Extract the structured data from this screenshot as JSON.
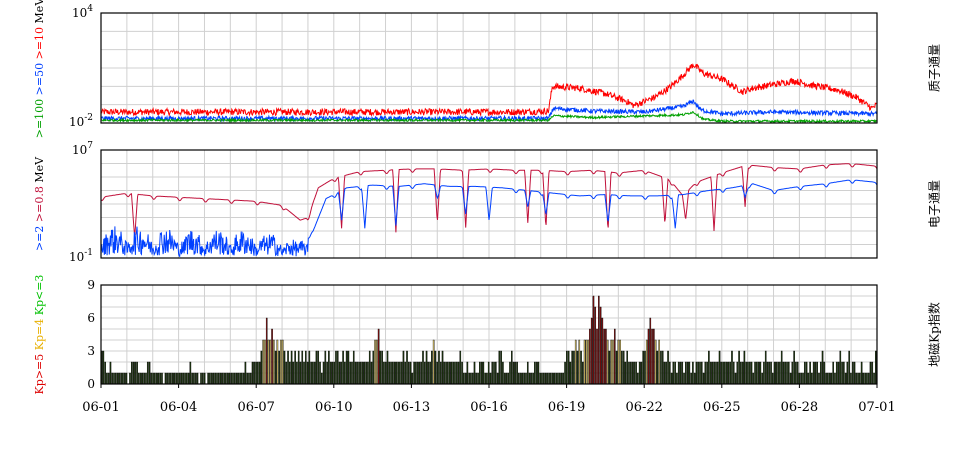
{
  "chart_data": [
    {
      "type": "line",
      "panel": "proton",
      "title": "质子通量",
      "ylabel_parts": [
        {
          "text": ">=100",
          "color": "#00a000"
        },
        {
          "text": ">=50",
          "color": "#0040ff"
        },
        {
          "text": ">=10",
          "color": "#ff0000"
        },
        {
          "text": "MeV",
          "color": "#000000"
        }
      ],
      "ytick_labels": [
        {
          "base": "10",
          "exp": "4"
        },
        {
          "base": "10",
          "exp": "-2"
        }
      ],
      "scale": "log",
      "ylim": [
        -2,
        4
      ],
      "grid": true,
      "series": [
        {
          "key": ">=10 MeV",
          "color": "#ff0000",
          "points": [
            [
              0,
              -1.4
            ],
            [
              16,
              -1.4
            ],
            [
              17.3,
              -1.35
            ],
            [
              17.45,
              0.0
            ],
            [
              18.5,
              -0.1
            ],
            [
              19.5,
              -0.4
            ],
            [
              20.3,
              -0.8
            ],
            [
              20.6,
              -1.05
            ],
            [
              21.4,
              -0.6
            ],
            [
              22,
              -0.05
            ],
            [
              22.5,
              0.6
            ],
            [
              22.9,
              1.2
            ],
            [
              23.3,
              0.7
            ],
            [
              24,
              0.4
            ],
            [
              24.8,
              -0.3
            ],
            [
              25.2,
              -0.1
            ],
            [
              26,
              0.1
            ],
            [
              26.8,
              0.3
            ],
            [
              27.5,
              0.05
            ],
            [
              28.5,
              -0.2
            ],
            [
              29.2,
              -0.6
            ],
            [
              29.8,
              -1.2
            ],
            [
              30,
              -1.0
            ]
          ],
          "noise": 0.18
        },
        {
          "key": ">=50 MeV",
          "color": "#0040ff",
          "points": [
            [
              0,
              -1.75
            ],
            [
              17.3,
              -1.75
            ],
            [
              17.5,
              -1.2
            ],
            [
              19,
              -1.35
            ],
            [
              21,
              -1.4
            ],
            [
              22.5,
              -1.1
            ],
            [
              22.9,
              -0.8
            ],
            [
              23.2,
              -1.3
            ],
            [
              24,
              -1.5
            ],
            [
              26,
              -1.4
            ],
            [
              28,
              -1.45
            ],
            [
              30,
              -1.5
            ]
          ],
          "noise": 0.12
        },
        {
          "key": ">=100 MeV",
          "color": "#00a000",
          "points": [
            [
              0,
              -1.85
            ],
            [
              17.3,
              -1.85
            ],
            [
              17.5,
              -1.6
            ],
            [
              19,
              -1.7
            ],
            [
              22.5,
              -1.55
            ],
            [
              22.9,
              -1.4
            ],
            [
              23.3,
              -1.8
            ],
            [
              24,
              -1.9
            ],
            [
              30,
              -1.9
            ]
          ],
          "noise": 0.06
        }
      ]
    },
    {
      "type": "line",
      "panel": "electron",
      "title": "电子通量",
      "ylabel_parts": [
        {
          "text": ">=2",
          "color": "#0040ff"
        },
        {
          "text": ">=0.8",
          "color": "#c0103a"
        },
        {
          "text": "MeV",
          "color": "#000000"
        }
      ],
      "ytick_labels": [
        {
          "base": "10",
          "exp": "7"
        },
        {
          "base": "10",
          "exp": "-1"
        }
      ],
      "scale": "log",
      "ylim": [
        -1,
        7
      ],
      "grid": true,
      "series": [
        {
          "key": ">=0.8 MeV",
          "color": "#c0103a",
          "points": [
            [
              0,
              3.5
            ],
            [
              1,
              3.8
            ],
            [
              2,
              3.6
            ],
            [
              3,
              3.5
            ],
            [
              4,
              3.4
            ],
            [
              5,
              3.3
            ],
            [
              6,
              3.2
            ],
            [
              7,
              2.9
            ],
            [
              7.7,
              1.8
            ],
            [
              8.0,
              2.0
            ],
            [
              8.4,
              4.2
            ],
            [
              9,
              4.9
            ],
            [
              10,
              5.4
            ],
            [
              11,
              5.5
            ],
            [
              12,
              5.6
            ],
            [
              13,
              5.6
            ],
            [
              14,
              5.5
            ],
            [
              15,
              5.6
            ],
            [
              16,
              5.5
            ],
            [
              17,
              5.5
            ],
            [
              18,
              5.4
            ],
            [
              19,
              5.5
            ],
            [
              20,
              5.3
            ],
            [
              21,
              5.5
            ],
            [
              22,
              4.8
            ],
            [
              22.5,
              3.6
            ],
            [
              23,
              4.6
            ],
            [
              24,
              5.3
            ],
            [
              25,
              5.9
            ],
            [
              26,
              5.7
            ],
            [
              27,
              5.6
            ],
            [
              28,
              5.9
            ],
            [
              29,
              6.0
            ],
            [
              30,
              5.8
            ]
          ],
          "dips": [
            [
              1.3,
              0.5
            ],
            [
              9.3,
              1.2
            ],
            [
              11.4,
              0.9
            ],
            [
              13.0,
              1.8
            ],
            [
              14.1,
              1.4
            ],
            [
              16.5,
              1.6
            ],
            [
              17.2,
              1.2
            ],
            [
              19.6,
              1.0
            ],
            [
              21.8,
              1.5
            ],
            [
              22.6,
              1.8
            ],
            [
              23.7,
              1.0
            ],
            [
              24.9,
              2.8
            ]
          ]
        },
        {
          "key": ">=2 MeV",
          "color": "#0040ff",
          "points": [
            [
              0,
              1.0
            ],
            [
              1,
              1.0
            ],
            [
              2,
              1.0
            ],
            [
              3,
              0.9
            ],
            [
              4,
              0.8
            ],
            [
              5,
              0.8
            ],
            [
              6,
              0.7
            ],
            [
              7,
              0.5
            ],
            [
              7.6,
              0.0
            ],
            [
              8.2,
              1.0
            ],
            [
              8.7,
              3.4
            ],
            [
              9.5,
              4.2
            ],
            [
              10.5,
              4.4
            ],
            [
              11.5,
              4.3
            ],
            [
              12.5,
              4.5
            ],
            [
              13.5,
              4.3
            ],
            [
              14.5,
              4.3
            ],
            [
              15.5,
              4.2
            ],
            [
              16.5,
              4.0
            ],
            [
              17.5,
              3.8
            ],
            [
              18.5,
              3.6
            ],
            [
              19.5,
              3.7
            ],
            [
              20.5,
              3.6
            ],
            [
              21.5,
              3.6
            ],
            [
              22.5,
              3.7
            ],
            [
              23.5,
              4.0
            ],
            [
              24.4,
              4.2
            ],
            [
              25.2,
              4.5
            ],
            [
              26,
              4.0
            ],
            [
              27,
              4.3
            ],
            [
              28,
              4.5
            ],
            [
              29,
              4.8
            ],
            [
              30,
              4.6
            ]
          ],
          "dips": [
            [
              3.2,
              0.3
            ],
            [
              6.4,
              0.3
            ],
            [
              9.3,
              1.8
            ],
            [
              10.2,
              1.2
            ],
            [
              11.4,
              1.4
            ],
            [
              13.0,
              3.6
            ],
            [
              14.1,
              2.4
            ],
            [
              15.0,
              2.0
            ],
            [
              16.5,
              2.8
            ],
            [
              17.2,
              2.2
            ],
            [
              19.6,
              1.6
            ],
            [
              22.2,
              1.2
            ],
            [
              24.9,
              3.5
            ]
          ],
          "noisy_range": [
            0,
            8
          ]
        }
      ]
    },
    {
      "type": "bar",
      "panel": "kp",
      "title": "地磁Kp指数",
      "ylabel_parts": [
        {
          "text": "Kp>=5",
          "color": "#dd0000"
        },
        {
          "text": "Kp=4",
          "color": "#e8b000"
        },
        {
          "text": "Kp<=3",
          "color": "#00c000"
        }
      ],
      "ylim": [
        0,
        9
      ],
      "yticks": [
        0,
        3,
        6,
        9
      ],
      "grid": true,
      "colors": {
        "quiet": "#1f3a10",
        "active": "#e8d070",
        "storm": "#8a1010"
      },
      "values": [
        3,
        3,
        2,
        1,
        1,
        2,
        1,
        1,
        1,
        1,
        1,
        1,
        1,
        1,
        1,
        0,
        1,
        2,
        2,
        2,
        2,
        1,
        1,
        1,
        1,
        1,
        2,
        2,
        1,
        1,
        1,
        1,
        1,
        1,
        1,
        0,
        1,
        1,
        1,
        1,
        1,
        1,
        1,
        1,
        1,
        1,
        1,
        1,
        1,
        1,
        2,
        1,
        1,
        1,
        1,
        0,
        1,
        1,
        1,
        0,
        1,
        1,
        1,
        1,
        1,
        1,
        1,
        1,
        1,
        1,
        1,
        1,
        1,
        1,
        1,
        1,
        1,
        1,
        1,
        1,
        1,
        2,
        1,
        1,
        1,
        2,
        2,
        2,
        2,
        2,
        3,
        4,
        4,
        6,
        4,
        4,
        5,
        4,
        3,
        4,
        3,
        4,
        4,
        3,
        2,
        3,
        2,
        3,
        2,
        3,
        2,
        3,
        2,
        3,
        2,
        3,
        2,
        3,
        2,
        2,
        2,
        3,
        3,
        2,
        1,
        2,
        3,
        2,
        3,
        2,
        2,
        2,
        3,
        3,
        2,
        2,
        3,
        2,
        3,
        3,
        2,
        2,
        3,
        2,
        2,
        2,
        2,
        2,
        2,
        2,
        2,
        3,
        2,
        3,
        4,
        4,
        5,
        3,
        3,
        2,
        2,
        3,
        2,
        2,
        2,
        2,
        2,
        2,
        2,
        2,
        3,
        2,
        3,
        2,
        2,
        1,
        2,
        2,
        2,
        2,
        2,
        3,
        2,
        3,
        2,
        2,
        3,
        4,
        3,
        2,
        3,
        2,
        3,
        2,
        2,
        2,
        2,
        2,
        2,
        2,
        2,
        2,
        3,
        2,
        1,
        1,
        2,
        1,
        1,
        1,
        2,
        1,
        1,
        2,
        2,
        2,
        1,
        1,
        2,
        1,
        2,
        2,
        2,
        1,
        3,
        3,
        2,
        1,
        1,
        1,
        2,
        3,
        2,
        2,
        2,
        1,
        1,
        1,
        1,
        1,
        2,
        1,
        1,
        1,
        2,
        2,
        2,
        1,
        1,
        1,
        1,
        1,
        1,
        1,
        1,
        1,
        1,
        1,
        1,
        1,
        1,
        2,
        3,
        3,
        2,
        3,
        3,
        4,
        3,
        4,
        3,
        2,
        4,
        4,
        4,
        5,
        6,
        8,
        7,
        5,
        8,
        7,
        6,
        5,
        5,
        4,
        3,
        4,
        4,
        5,
        3,
        4,
        4,
        3,
        3,
        2,
        3,
        2,
        2,
        2,
        2,
        2,
        1,
        2,
        2,
        3,
        3,
        4,
        5,
        6,
        5,
        5,
        4,
        3,
        4,
        3,
        3,
        2,
        2,
        3,
        2,
        1,
        2,
        2,
        1,
        2,
        2,
        2,
        1,
        2,
        2,
        2,
        1,
        2,
        1,
        2,
        2,
        2,
        2,
        1,
        2,
        2,
        3,
        2,
        2,
        2,
        2,
        2,
        3,
        2,
        2,
        2,
        2,
        2,
        2,
        3,
        2,
        1,
        2,
        3,
        2,
        2,
        3,
        2,
        2,
        2,
        2,
        1,
        2,
        2,
        2,
        2,
        1,
        2,
        3,
        2,
        2,
        2,
        1,
        2,
        2,
        2,
        2,
        3,
        2,
        2,
        2,
        2,
        1,
        2,
        3,
        2,
        2,
        1,
        1,
        1,
        2,
        2,
        1,
        2,
        1,
        2,
        2,
        2,
        1,
        2,
        3,
        2,
        1,
        1,
        1,
        1,
        2,
        1,
        2,
        2,
        3,
        2,
        2,
        1,
        2,
        3,
        1,
        2,
        2,
        1,
        1,
        1,
        2,
        1,
        1,
        1,
        1,
        2,
        2,
        1,
        3
      ],
      "x_tick_labels": [
        "06-01",
        "06-04",
        "06-07",
        "06-10",
        "06-13",
        "06-16",
        "06-19",
        "06-22",
        "06-25",
        "06-28",
        "07-01"
      ],
      "x_tick_days": [
        0,
        3,
        6,
        9,
        12,
        15,
        18,
        21,
        24,
        27,
        30
      ]
    }
  ]
}
